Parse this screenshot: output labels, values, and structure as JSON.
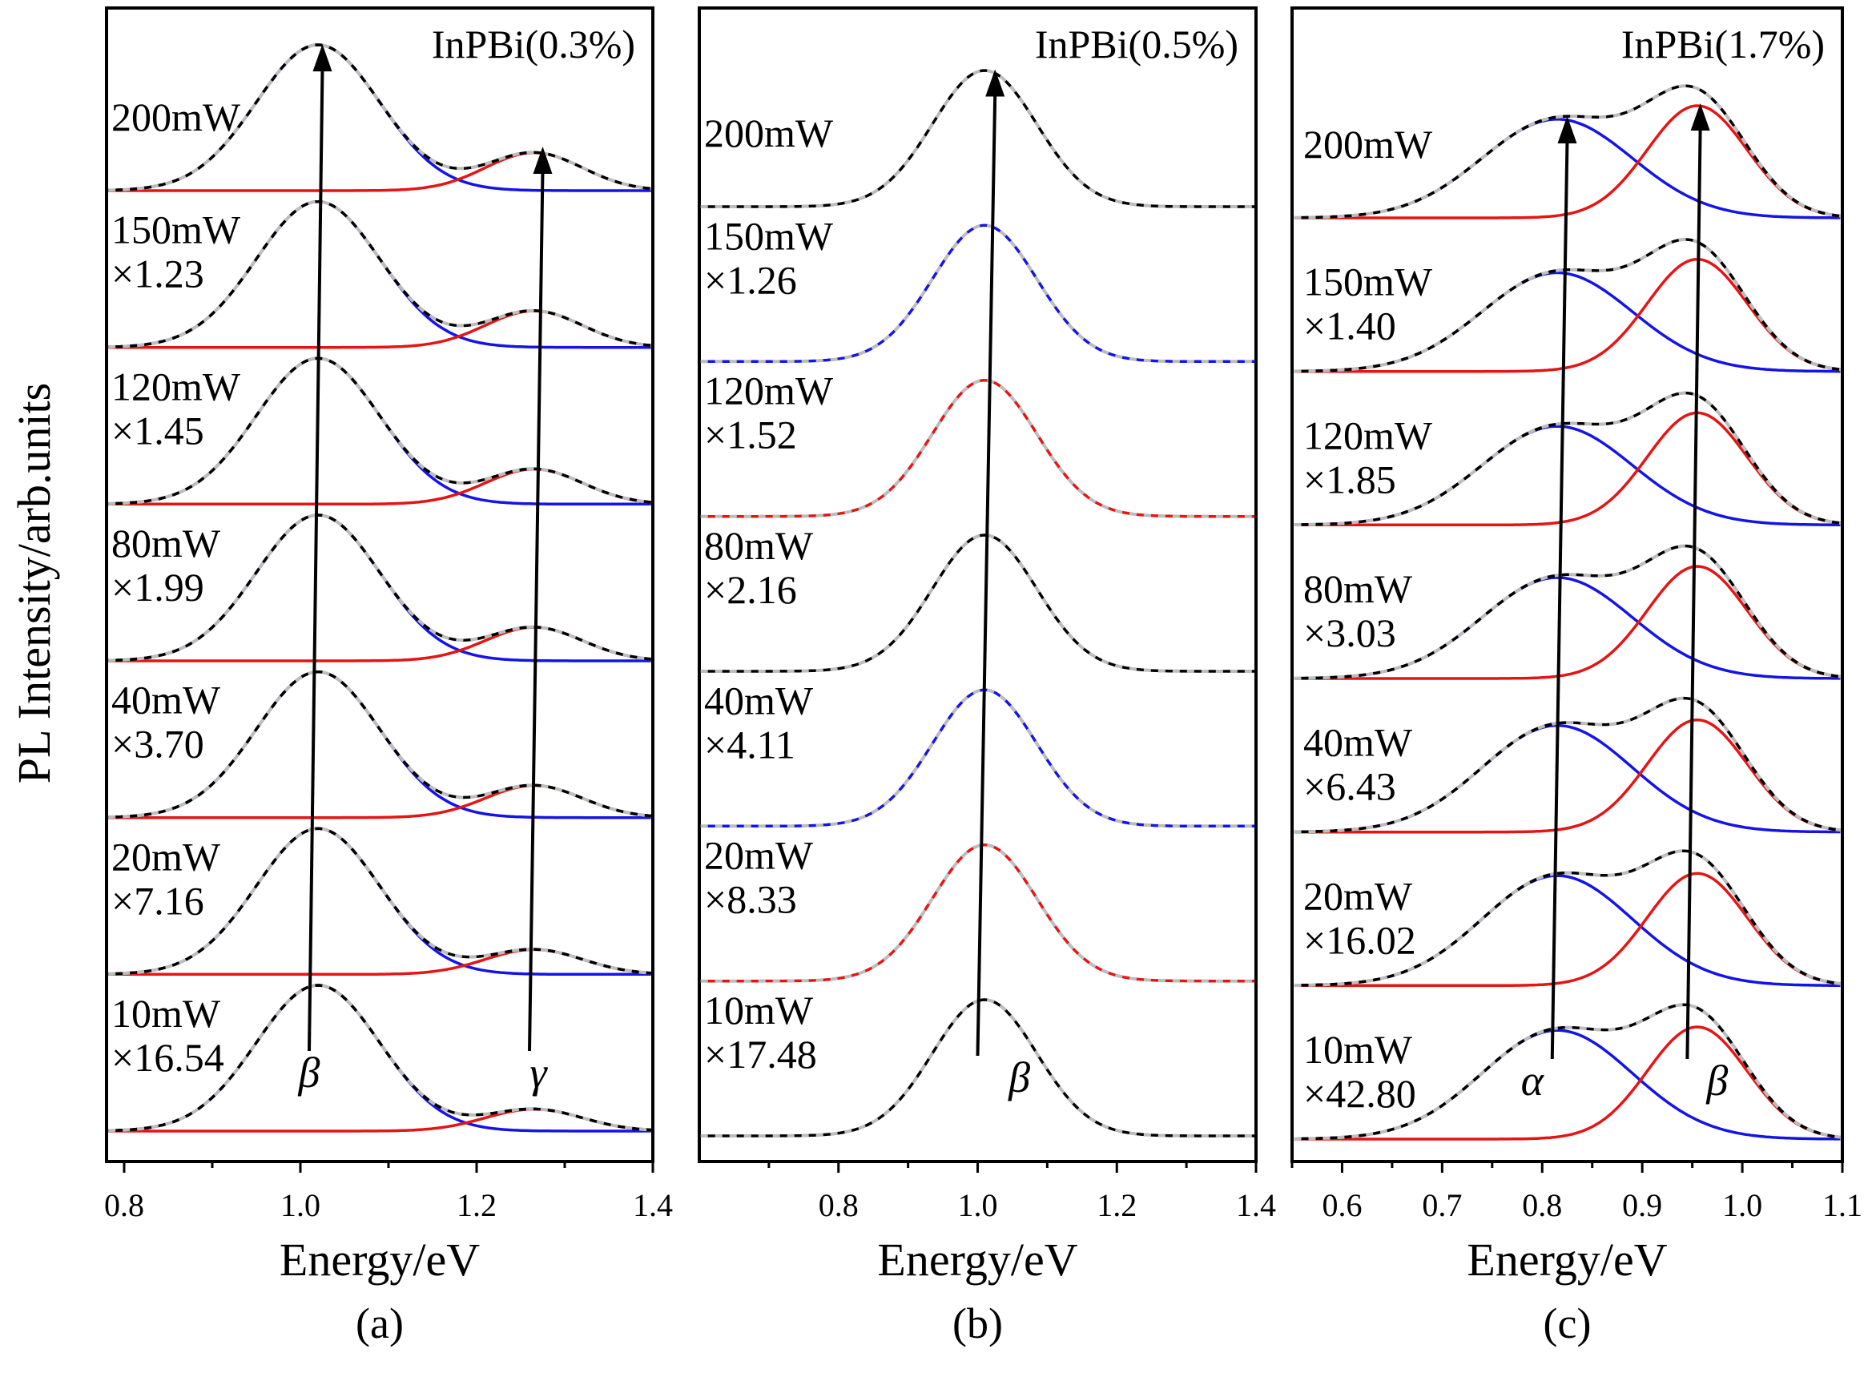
{
  "figure": {
    "ylabel": "PL Intensity/arb.units"
  },
  "chart_data": [
    {
      "panel": "(a)",
      "type": "line",
      "title": "InPBi(0.3%)",
      "xlabel": "Energy/eV",
      "xlim": [
        0.78,
        1.4
      ],
      "xticks": [
        0.8,
        1.0,
        1.2,
        1.4
      ],
      "xtick_labels": [
        "0.8",
        "1.0",
        "1.2",
        "1.4"
      ],
      "peak_labels": [
        {
          "text": "β",
          "x": 1.01
        },
        {
          "text": "γ",
          "x": 1.27
        }
      ],
      "peaks": [
        {
          "center": 1.02,
          "width": 0.07,
          "color": "#1414e6"
        },
        {
          "center": 1.265,
          "width": 0.055,
          "color": "#e61414"
        }
      ],
      "arrows": [
        {
          "x_start": 1.01,
          "x_end": 1.025
        },
        {
          "x_start": 1.26,
          "x_end": 1.275
        }
      ],
      "curves": [
        {
          "power": "200mW",
          "scale": "",
          "amplitudes": [
            1.0,
            0.26
          ]
        },
        {
          "power": "150mW",
          "scale": "×1.23",
          "amplitudes": [
            1.0,
            0.25
          ]
        },
        {
          "power": "120mW",
          "scale": "×1.45",
          "amplitudes": [
            1.0,
            0.24
          ]
        },
        {
          "power": "80mW",
          "scale": "×1.99",
          "amplitudes": [
            1.0,
            0.23
          ]
        },
        {
          "power": "40mW",
          "scale": "×3.70",
          "amplitudes": [
            1.0,
            0.22
          ]
        },
        {
          "power": "20mW",
          "scale": "×7.16",
          "amplitudes": [
            1.0,
            0.17
          ]
        },
        {
          "power": "10mW",
          "scale": "×16.54",
          "amplitudes": [
            1.0,
            0.15
          ]
        }
      ]
    },
    {
      "panel": "(b)",
      "type": "line",
      "title": "InPBi(0.5%)",
      "xlabel": "Energy/eV",
      "xlim": [
        0.6,
        1.4
      ],
      "xticks": [
        0.8,
        1.0,
        1.2,
        1.4
      ],
      "xtick_labels": [
        "0.8",
        "1.0",
        "1.2",
        "1.4"
      ],
      "peak_labels": [
        {
          "text": "β",
          "x": 1.06
        }
      ],
      "peaks": [
        {
          "center": 1.01,
          "width": 0.075,
          "color": "#000000"
        }
      ],
      "arrows": [
        {
          "x_start": 1.0,
          "x_end": 1.025
        }
      ],
      "curves": [
        {
          "power": "200mW",
          "scale": "",
          "color": "#000000",
          "amplitudes": [
            1.0
          ]
        },
        {
          "power": "150mW",
          "scale": "×1.26",
          "color": "#1414e6",
          "amplitudes": [
            1.0
          ]
        },
        {
          "power": "120mW",
          "scale": "×1.52",
          "color": "#e61414",
          "amplitudes": [
            1.0
          ]
        },
        {
          "power": "80mW",
          "scale": "×2.16",
          "color": "#000000",
          "amplitudes": [
            1.0
          ]
        },
        {
          "power": "40mW",
          "scale": "×4.11",
          "color": "#1414e6",
          "amplitudes": [
            1.0
          ]
        },
        {
          "power": "20mW",
          "scale": "×8.33",
          "color": "#e61414",
          "amplitudes": [
            1.0
          ]
        },
        {
          "power": "10mW",
          "scale": "×17.48",
          "color": "#000000",
          "amplitudes": [
            1.0
          ]
        }
      ]
    },
    {
      "panel": "(c)",
      "type": "line",
      "title": "InPBi(1.7%)",
      "xlabel": "Energy/eV",
      "xlim": [
        0.55,
        1.1
      ],
      "xticks": [
        0.6,
        0.7,
        0.8,
        0.9,
        1.0,
        1.1
      ],
      "xtick_labels": [
        "0.6",
        "0.7",
        "0.8",
        "0.9",
        "1.0",
        "1.1"
      ],
      "peak_labels": [
        {
          "text": "α",
          "x": 0.79
        },
        {
          "text": "β",
          "x": 0.975
        }
      ],
      "peaks": [
        {
          "center": 0.815,
          "width": 0.075,
          "color": "#1414e6"
        },
        {
          "center": 0.955,
          "width": 0.05,
          "color": "#e61414"
        }
      ],
      "arrows": [
        {
          "x_start": 0.81,
          "x_end": 0.825
        },
        {
          "x_start": 0.945,
          "x_end": 0.958
        }
      ],
      "curves": [
        {
          "power": "200mW",
          "scale": "",
          "amplitudes": [
            0.88,
            1.0
          ]
        },
        {
          "power": "150mW",
          "scale": "×1.40",
          "amplitudes": [
            0.88,
            1.0
          ]
        },
        {
          "power": "120mW",
          "scale": "×1.85",
          "amplitudes": [
            0.88,
            1.0
          ]
        },
        {
          "power": "80mW",
          "scale": "×3.03",
          "amplitudes": [
            0.9,
            1.0
          ]
        },
        {
          "power": "40mW",
          "scale": "×6.43",
          "amplitudes": [
            0.95,
            1.0
          ]
        },
        {
          "power": "20mW",
          "scale": "×16.02",
          "amplitudes": [
            0.98,
            1.0
          ]
        },
        {
          "power": "10mW",
          "scale": "×42.80",
          "amplitudes": [
            0.97,
            1.0
          ]
        }
      ]
    }
  ]
}
